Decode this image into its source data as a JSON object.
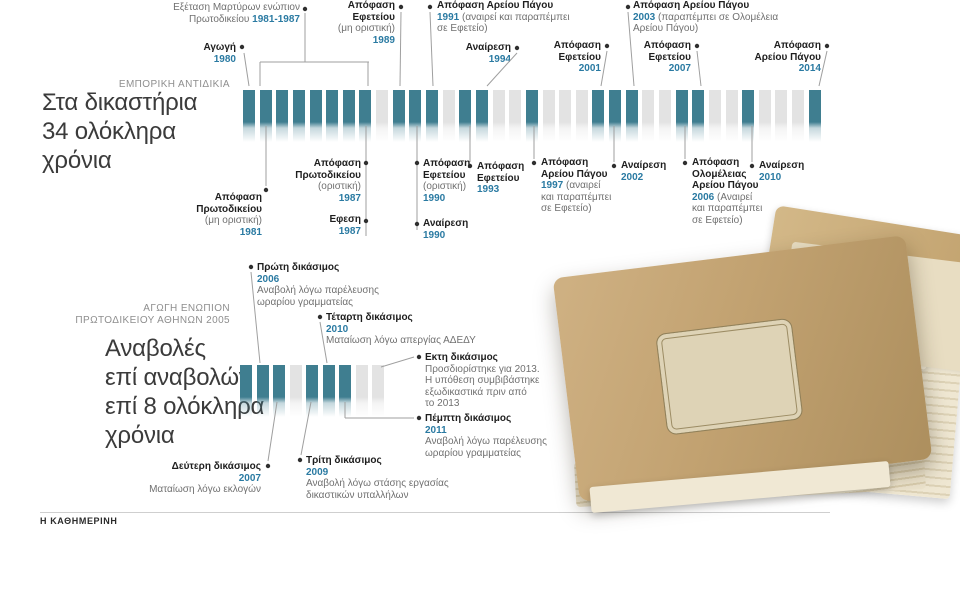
{
  "page": {
    "footer_brand": "Η ΚΑΘΗΜΕΡΙΝΗ"
  },
  "colors": {
    "active_bar": "#3f7e90",
    "inactive_bar": "#e3e3e3",
    "year_text": "#2a7aa2",
    "dark_text": "#1e1e1e",
    "gray_text": "#707070",
    "title_text": "#3b3b3b",
    "kicker_text": "#8e8e8e"
  },
  "timeline1": {
    "kicker": "ΕΜΠΟΡΙΚΗ ΑΝΤΙΔΙΚΙΑ",
    "title": [
      [
        {
          "t": "Στα δικαστήρια"
        }
      ],
      [
        {
          "t": "34 ολόκληρα"
        }
      ],
      [
        {
          "t": "χρόνια"
        }
      ]
    ],
    "annotations": {
      "witness": [
        [
          {
            "t": "Εξέταση Μαρτύρων ενώπιον",
            "s": "g"
          }
        ],
        [
          {
            "t": "Πρωτοδικείου ",
            "s": "g"
          },
          {
            "t": "1981-1987",
            "s": "y"
          }
        ]
      ],
      "a1980": [
        [
          {
            "t": "Αγωγή",
            "s": "b"
          }
        ],
        [
          {
            "t": "1980",
            "s": "y"
          }
        ]
      ],
      "a1989": [
        [
          {
            "t": "Απόφαση",
            "s": "b"
          }
        ],
        [
          {
            "t": "Εφετείου",
            "s": "b"
          }
        ],
        [
          {
            "t": "(μη οριστική)",
            "s": "g"
          }
        ],
        [
          {
            "t": "1989",
            "s": "y"
          }
        ]
      ],
      "a1991": [
        [
          {
            "t": "Απόφαση Αρείου Πάγου",
            "s": "b"
          }
        ],
        [
          {
            "t": "1991 ",
            "s": "y"
          },
          {
            "t": "(αναιρεί και παραπέμπει",
            "s": "g"
          }
        ],
        [
          {
            "t": "σε Εφετείο)",
            "s": "g"
          }
        ]
      ],
      "a1994": [
        [
          {
            "t": "Αναίρεση",
            "s": "b"
          }
        ],
        [
          {
            "t": "1994",
            "s": "y"
          }
        ]
      ],
      "a2001": [
        [
          {
            "t": "Απόφαση",
            "s": "b"
          }
        ],
        [
          {
            "t": "Εφετείου",
            "s": "b"
          }
        ],
        [
          {
            "t": "2001",
            "s": "y"
          }
        ]
      ],
      "a2003": [
        [
          {
            "t": "Απόφαση Αρείου Πάγου",
            "s": "b"
          }
        ],
        [
          {
            "t": "2003 ",
            "s": "y"
          },
          {
            "t": "(παραπέμπει σε Ολομέλεια",
            "s": "g"
          }
        ],
        [
          {
            "t": "Αρείου Πάγου)",
            "s": "g"
          }
        ]
      ],
      "a2007": [
        [
          {
            "t": "Απόφαση",
            "s": "b"
          }
        ],
        [
          {
            "t": "Εφετείου",
            "s": "b"
          }
        ],
        [
          {
            "t": "2007",
            "s": "y"
          }
        ]
      ],
      "a2014": [
        [
          {
            "t": "Απόφαση",
            "s": "b"
          }
        ],
        [
          {
            "t": "Αρείου Πάγου",
            "s": "b"
          }
        ],
        [
          {
            "t": "2014",
            "s": "y"
          }
        ]
      ],
      "b1981": [
        [
          {
            "t": "Απόφαση",
            "s": "b"
          }
        ],
        [
          {
            "t": "Πρωτοδικείου",
            "s": "b"
          }
        ],
        [
          {
            "t": "(μη οριστική)",
            "s": "g"
          }
        ],
        [
          {
            "t": "1981",
            "s": "y"
          }
        ]
      ],
      "b1987a": [
        [
          {
            "t": "Απόφαση",
            "s": "b"
          }
        ],
        [
          {
            "t": "Πρωτοδικείου",
            "s": "b"
          }
        ],
        [
          {
            "t": "(οριστική)",
            "s": "g"
          }
        ],
        [
          {
            "t": "1987",
            "s": "y"
          }
        ]
      ],
      "b1987b": [
        [
          {
            "t": "Εφεση",
            "s": "b"
          }
        ],
        [
          {
            "t": "1987",
            "s": "y"
          }
        ]
      ],
      "b1990a": [
        [
          {
            "t": "Απόφαση",
            "s": "b"
          }
        ],
        [
          {
            "t": "Εφετείου",
            "s": "b"
          }
        ],
        [
          {
            "t": "(οριστική)",
            "s": "g"
          }
        ],
        [
          {
            "t": "1990",
            "s": "y"
          }
        ]
      ],
      "b1990b": [
        [
          {
            "t": "Αναίρεση",
            "s": "b"
          }
        ],
        [
          {
            "t": "1990",
            "s": "y"
          }
        ]
      ],
      "b1993": [
        [
          {
            "t": "Απόφαση",
            "s": "b"
          }
        ],
        [
          {
            "t": "Εφετείου",
            "s": "b"
          }
        ],
        [
          {
            "t": "1993",
            "s": "y"
          }
        ]
      ],
      "b1997": [
        [
          {
            "t": "Απόφαση",
            "s": "b"
          }
        ],
        [
          {
            "t": "Αρείου Πάγου",
            "s": "b"
          }
        ],
        [
          {
            "t": "1997 ",
            "s": "y"
          },
          {
            "t": "(αναιρεί",
            "s": "g"
          }
        ],
        [
          {
            "t": "και παραπέμπει",
            "s": "g"
          }
        ],
        [
          {
            "t": "σε Εφετείο)",
            "s": "g"
          }
        ]
      ],
      "b2002": [
        [
          {
            "t": "Αναίρεση",
            "s": "b"
          }
        ],
        [
          {
            "t": "2002",
            "s": "y"
          }
        ]
      ],
      "b2006": [
        [
          {
            "t": "Απόφαση",
            "s": "b"
          }
        ],
        [
          {
            "t": "Ολομέλειας",
            "s": "b"
          }
        ],
        [
          {
            "t": "Αρείου Πάγου",
            "s": "b"
          }
        ],
        [
          {
            "t": "2006 ",
            "s": "y"
          },
          {
            "t": "(Αναιρεί",
            "s": "g"
          }
        ],
        [
          {
            "t": "και παραπέμπει",
            "s": "g"
          }
        ],
        [
          {
            "t": "σε Εφετείο)",
            "s": "g"
          }
        ]
      ],
      "b2010": [
        [
          {
            "t": "Αναίρεση",
            "s": "b"
          }
        ],
        [
          {
            "t": "2010",
            "s": "y"
          }
        ]
      ]
    }
  },
  "timeline2": {
    "kicker": [
      [
        {
          "t": "ΑΓΩΓΗ ΕΝΩΠΙΟΝ"
        }
      ],
      [
        {
          "t": "ΠΡΩΤΟΔΙΚΕΙΟΥ ΑΘΗΝΩΝ 2005"
        }
      ]
    ],
    "title": [
      [
        {
          "t": "Αναβολές"
        }
      ],
      [
        {
          "t": "επί αναβολών"
        }
      ],
      [
        {
          "t": "επί 8 ολόκληρα"
        }
      ],
      [
        {
          "t": "χρόνια"
        }
      ]
    ],
    "annotations": {
      "t2006": [
        [
          {
            "t": "Πρώτη δικάσιμος",
            "s": "b"
          }
        ],
        [
          {
            "t": "2006",
            "s": "y"
          }
        ],
        [
          {
            "t": "Αναβολή λόγω παρέλευσης",
            "s": "g"
          }
        ],
        [
          {
            "t": "ωραρίου γραμματείας",
            "s": "g"
          }
        ]
      ],
      "t2010": [
        [
          {
            "t": "Τέταρτη δικάσιμος",
            "s": "b"
          }
        ],
        [
          {
            "t": "2010",
            "s": "y"
          }
        ],
        [
          {
            "t": "Ματαίωση λόγω απεργίας ΑΔΕΔΥ",
            "s": "g"
          }
        ]
      ],
      "t2013": [
        [
          {
            "t": "Εκτη δικάσιμος",
            "s": "b"
          }
        ],
        [
          {
            "t": "Προσδιορίστηκε για 2013.",
            "s": "g"
          }
        ],
        [
          {
            "t": "Η υπόθεση συμβιβάστηκε",
            "s": "g"
          }
        ],
        [
          {
            "t": "εξωδικαστικά πριν από",
            "s": "g"
          }
        ],
        [
          {
            "t": "το 2013",
            "s": "g"
          }
        ]
      ],
      "t2011": [
        [
          {
            "t": "Πέμπτη δικάσιμος",
            "s": "b"
          }
        ],
        [
          {
            "t": "2011",
            "s": "y"
          }
        ],
        [
          {
            "t": "Αναβολή λόγω παρέλευσης",
            "s": "g"
          }
        ],
        [
          {
            "t": "ωραρίου γραμματείας",
            "s": "g"
          }
        ]
      ],
      "t2007": [
        [
          {
            "t": "Δεύτερη δικάσιμος",
            "s": "b"
          }
        ],
        [
          {
            "t": "2007",
            "s": "y"
          }
        ],
        [
          {
            "t": "Ματαίωση λόγω εκλογών",
            "s": "g"
          }
        ]
      ],
      "t2009": [
        [
          {
            "t": "Τρίτη δικάσιμος",
            "s": "b"
          }
        ],
        [
          {
            "t": "2009",
            "s": "y"
          }
        ],
        [
          {
            "t": "Αναβολή λόγω στάσης εργασίας",
            "s": "g"
          }
        ],
        [
          {
            "t": "δικαστικών υπαλλήλων",
            "s": "g"
          }
        ]
      ]
    }
  },
  "chart_data": [
    {
      "type": "bar",
      "subtype": "year-timeline",
      "title": "Στα δικαστήρια 34 ολόκληρα χρόνια",
      "kicker": "ΕΜΠΟΡΙΚΗ ΑΝΤΙΔΙΚΙΑ",
      "start_year": 1980,
      "end_year": 2014,
      "event_years": [
        1980,
        1981,
        1982,
        1983,
        1984,
        1985,
        1986,
        1987,
        1989,
        1990,
        1991,
        1993,
        1994,
        1997,
        2001,
        2002,
        2003,
        2006,
        2007,
        2010,
        2014
      ],
      "events": [
        {
          "year": "1980",
          "event": "Αγωγή"
        },
        {
          "year": "1981",
          "event": "Απόφαση Πρωτοδικείου (μη οριστική)"
        },
        {
          "year": "1981-1987",
          "event": "Εξέταση Μαρτύρων ενώπιον Πρωτοδικείου"
        },
        {
          "year": "1987",
          "event": "Απόφαση Πρωτοδικείου (οριστική)"
        },
        {
          "year": "1987",
          "event": "Εφεση"
        },
        {
          "year": "1989",
          "event": "Απόφαση Εφετείου (μη οριστική)"
        },
        {
          "year": "1990",
          "event": "Απόφαση Εφετείου (οριστική)"
        },
        {
          "year": "1990",
          "event": "Αναίρεση"
        },
        {
          "year": "1991",
          "event": "Απόφαση Αρείου Πάγου (αναιρεί και παραπέμπει σε Εφετείο)"
        },
        {
          "year": "1993",
          "event": "Απόφαση Εφετείου"
        },
        {
          "year": "1994",
          "event": "Αναίρεση"
        },
        {
          "year": "1997",
          "event": "Απόφαση Αρείου Πάγου (αναιρεί και παραπέμπει σε Εφετείο)"
        },
        {
          "year": "2001",
          "event": "Απόφαση Εφετείου"
        },
        {
          "year": "2002",
          "event": "Αναίρεση"
        },
        {
          "year": "2003",
          "event": "Απόφαση Αρείου Πάγου (παραπέμπει σε Ολομέλεια Αρείου Πάγου)"
        },
        {
          "year": "2006",
          "event": "Απόφαση Ολομέλειας Αρείου Πάγου (Αναιρεί και παραπέμπει σε Εφετείο)"
        },
        {
          "year": "2007",
          "event": "Απόφαση Εφετείου"
        },
        {
          "year": "2010",
          "event": "Αναίρεση"
        },
        {
          "year": "2014",
          "event": "Απόφαση Αρείου Πάγου"
        }
      ]
    },
    {
      "type": "bar",
      "subtype": "year-timeline",
      "title": "Αναβολές επί αναβολών επί 8 ολόκληρα χρόνια",
      "kicker": "ΑΓΩΓΗ ΕΝΩΠΙΟΝ ΠΡΩΤΟΔΙΚΕΙΟΥ ΑΘΗΝΩΝ 2005",
      "start_year": 2005,
      "end_year": 2013,
      "event_years": [
        2005,
        2006,
        2007,
        2009,
        2010,
        2011
      ],
      "events": [
        {
          "year": "2005",
          "event": "Αγωγή ενώπιον Πρωτοδικείου Αθηνών"
        },
        {
          "year": "2006",
          "event": "Πρώτη δικάσιμος — Αναβολή λόγω παρέλευσης ωραρίου γραμματείας"
        },
        {
          "year": "2007",
          "event": "Δεύτερη δικάσιμος — Ματαίωση λόγω εκλογών"
        },
        {
          "year": "2009",
          "event": "Τρίτη δικάσιμος — Αναβολή λόγω στάσης εργασίας δικαστικών υπαλλήλων"
        },
        {
          "year": "2010",
          "event": "Τέταρτη δικάσιμος — Ματαίωση λόγω απεργίας ΑΔΕΔΥ"
        },
        {
          "year": "2011",
          "event": "Πέμπτη δικάσιμος — Αναβολή λόγω παρέλευσης ωραρίου γραμματείας"
        },
        {
          "year": "2013",
          "event": "Εκτη δικάσιμος — Προσδιορίστηκε για 2013. Η υπόθεση συμβιβάστηκε εξωδικαστικά πριν από το 2013"
        }
      ]
    }
  ]
}
